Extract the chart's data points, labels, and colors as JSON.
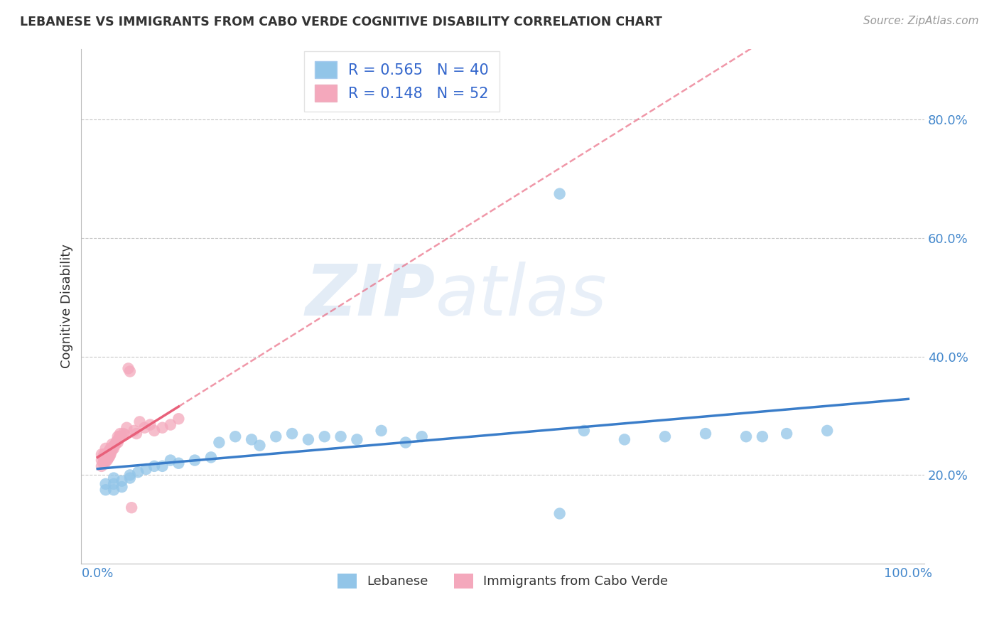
{
  "title": "LEBANESE VS IMMIGRANTS FROM CABO VERDE COGNITIVE DISABILITY CORRELATION CHART",
  "source": "Source: ZipAtlas.com",
  "ylabel": "Cognitive Disability",
  "xlim": [
    -0.02,
    1.02
  ],
  "ylim": [
    0.05,
    0.92
  ],
  "xticks": [
    0.0,
    0.25,
    0.5,
    0.75,
    1.0
  ],
  "xticklabels": [
    "0.0%",
    "",
    "",
    "",
    "100.0%"
  ],
  "yticks": [
    0.2,
    0.4,
    0.6,
    0.8
  ],
  "yticklabels": [
    "20.0%",
    "40.0%",
    "60.0%",
    "80.0%"
  ],
  "blue_R": 0.565,
  "blue_N": 40,
  "pink_R": 0.148,
  "pink_N": 52,
  "blue_color": "#92c5e8",
  "pink_color": "#f4a8bc",
  "blue_line_color": "#3a7dc9",
  "pink_line_color": "#e8607a",
  "grid_color": "#c8c8c8",
  "legend_blue_label": "Lebanese",
  "legend_pink_label": "Immigrants from Cabo Verde",
  "blue_scatter_x": [
    0.01,
    0.01,
    0.02,
    0.02,
    0.02,
    0.03,
    0.03,
    0.04,
    0.04,
    0.05,
    0.06,
    0.07,
    0.08,
    0.09,
    0.1,
    0.12,
    0.14,
    0.15,
    0.17,
    0.19,
    0.2,
    0.22,
    0.24,
    0.26,
    0.28,
    0.3,
    0.32,
    0.35,
    0.38,
    0.4,
    0.6,
    0.65,
    0.7,
    0.75,
    0.8,
    0.82,
    0.85,
    0.9,
    0.57,
    0.57
  ],
  "blue_scatter_y": [
    0.175,
    0.185,
    0.175,
    0.185,
    0.195,
    0.18,
    0.19,
    0.195,
    0.2,
    0.205,
    0.21,
    0.215,
    0.215,
    0.225,
    0.22,
    0.225,
    0.23,
    0.255,
    0.265,
    0.26,
    0.25,
    0.265,
    0.27,
    0.26,
    0.265,
    0.265,
    0.26,
    0.275,
    0.255,
    0.265,
    0.275,
    0.26,
    0.265,
    0.27,
    0.265,
    0.265,
    0.27,
    0.275,
    0.675,
    0.135
  ],
  "pink_scatter_x": [
    0.005,
    0.005,
    0.005,
    0.007,
    0.007,
    0.008,
    0.008,
    0.009,
    0.009,
    0.01,
    0.01,
    0.01,
    0.012,
    0.012,
    0.013,
    0.013,
    0.014,
    0.014,
    0.015,
    0.015,
    0.016,
    0.016,
    0.017,
    0.018,
    0.018,
    0.019,
    0.02,
    0.021,
    0.022,
    0.023,
    0.024,
    0.025,
    0.025,
    0.026,
    0.027,
    0.028,
    0.03,
    0.032,
    0.034,
    0.036,
    0.038,
    0.04,
    0.042,
    0.045,
    0.048,
    0.052,
    0.058,
    0.065,
    0.07,
    0.08,
    0.09,
    0.1
  ],
  "pink_scatter_y": [
    0.215,
    0.225,
    0.235,
    0.22,
    0.23,
    0.225,
    0.235,
    0.22,
    0.23,
    0.225,
    0.235,
    0.245,
    0.225,
    0.235,
    0.228,
    0.238,
    0.23,
    0.24,
    0.232,
    0.242,
    0.235,
    0.245,
    0.24,
    0.242,
    0.252,
    0.248,
    0.245,
    0.25,
    0.252,
    0.255,
    0.258,
    0.255,
    0.265,
    0.26,
    0.265,
    0.27,
    0.265,
    0.27,
    0.268,
    0.28,
    0.38,
    0.375,
    0.145,
    0.275,
    0.27,
    0.29,
    0.28,
    0.285,
    0.275,
    0.28,
    0.285,
    0.295
  ]
}
